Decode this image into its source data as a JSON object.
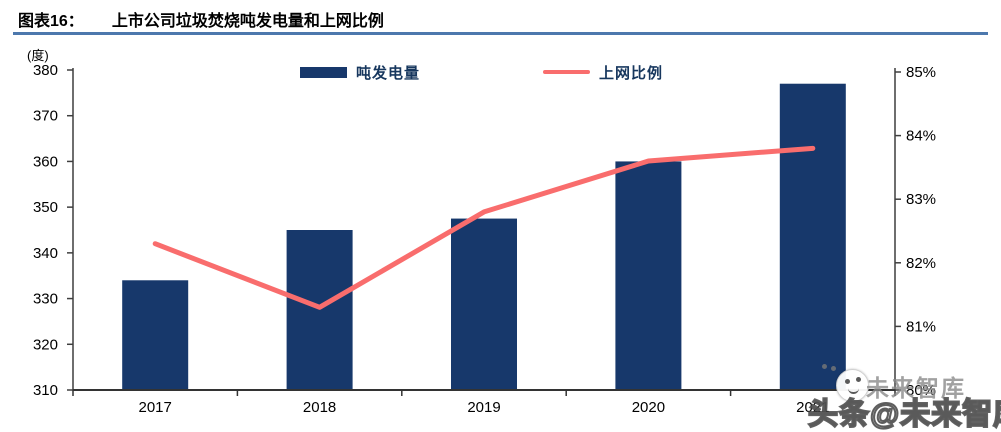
{
  "header": {
    "label": "图表16：",
    "title": "上市公司垃圾焚烧吨发电量和上网比例"
  },
  "chart_data": {
    "type": "bar",
    "subtype": "bar+line combo",
    "title": "上市公司垃圾焚烧吨发电量和上网比例",
    "categories": [
      "2017",
      "2018",
      "2019",
      "2020",
      "2021"
    ],
    "series": [
      {
        "name": "吨发电量",
        "type": "bar",
        "axis": "left",
        "color": "#17386b",
        "values": [
          334,
          345,
          347.5,
          360,
          377
        ]
      },
      {
        "name": "上网比例",
        "type": "line",
        "axis": "right",
        "color": "#f96d6d",
        "values": [
          82.3,
          81.3,
          82.8,
          83.6,
          83.8
        ]
      }
    ],
    "left_axis": {
      "unit": "(度)",
      "min": 310,
      "max": 380,
      "step": 10,
      "ticks": [
        "380",
        "370",
        "360",
        "350",
        "340",
        "330",
        "320",
        "310"
      ]
    },
    "right_axis": {
      "min": 80,
      "max": 85,
      "step": 1,
      "ticks": [
        "85%",
        "84%",
        "83%",
        "82%",
        "81%",
        "80%"
      ]
    },
    "legend_position": "top-center",
    "grid": false
  },
  "watermark": {
    "small_text": "未来智库",
    "large_text": "头条@未来智库",
    "icon": "smiley-face-icon"
  },
  "colors": {
    "bar": "#17386b",
    "line": "#f96d6d",
    "title_rule": "#4d78ad",
    "legend_text": "#17375e",
    "axis": "#3f3f3f",
    "watermark_gray": "#8a8a8a"
  }
}
